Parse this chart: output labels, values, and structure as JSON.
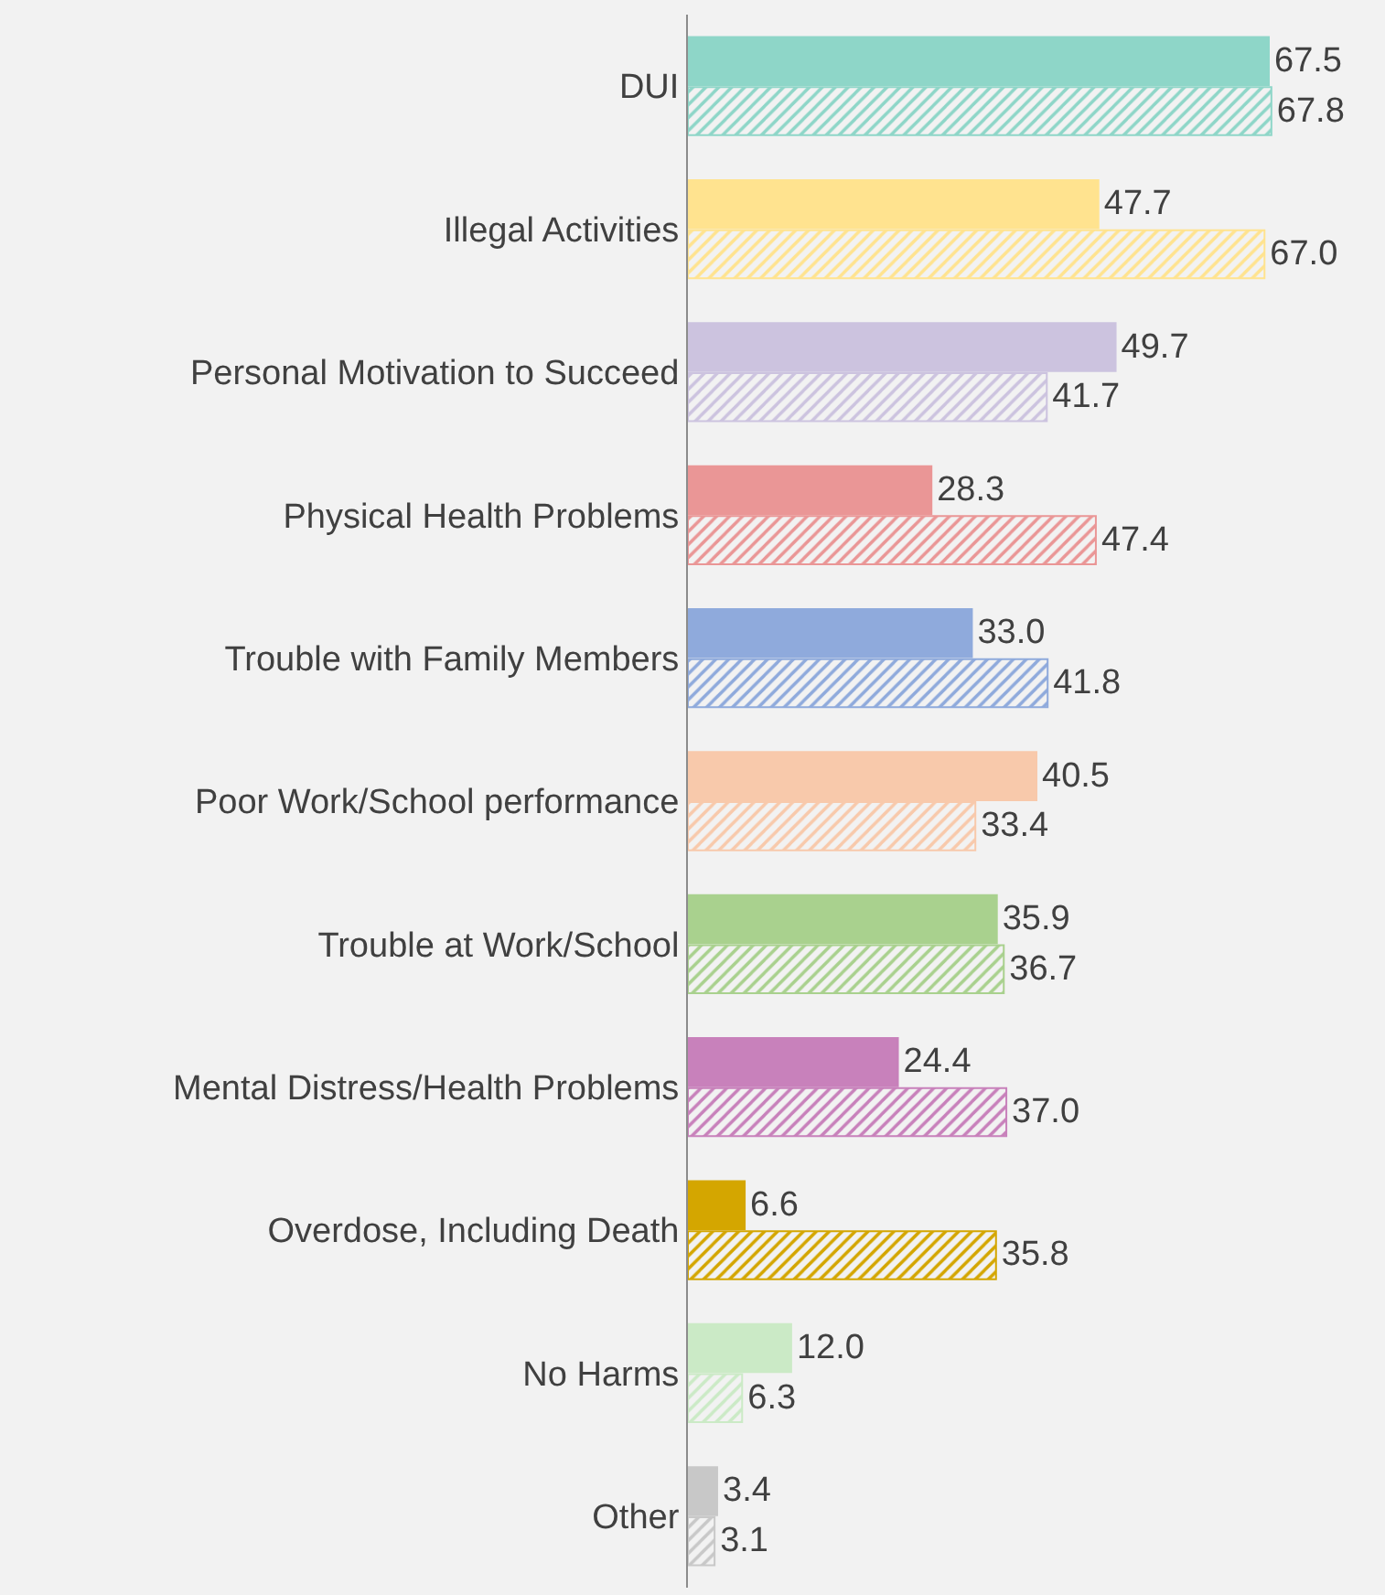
{
  "chart_data": {
    "type": "bar",
    "orientation": "horizontal",
    "categories": [
      "DUI",
      "Illegal Activities",
      "Personal Motivation to Succeed",
      "Physical Health Problems",
      "Trouble with Family Members",
      "Poor Work/School performance",
      "Trouble at Work/School",
      "Mental Distress/Health Problems",
      "Overdose, Including Death",
      "No Harms",
      "Other"
    ],
    "series": [
      {
        "values": [
          67.5,
          47.7,
          49.7,
          28.3,
          33.0,
          40.5,
          35.9,
          24.4,
          6.6,
          12.0,
          3.4
        ],
        "value_labels": [
          "67.5",
          "47.7",
          "49.7",
          "28.3",
          "33.0",
          "40.5",
          "35.9",
          "24.4",
          "6.6",
          "12.0",
          "3.4"
        ],
        "colors": [
          "#8ed6c8",
          "#ffe38f",
          "#ccc3df",
          "#ea9696",
          "#8faadc",
          "#f8c9ab",
          "#a9d18e",
          "#c881bb",
          "#d4a600",
          "#cbeac6",
          "#c8c8c8"
        ]
      },
      {
        "values": [
          67.8,
          67.0,
          41.7,
          47.4,
          41.8,
          33.4,
          36.7,
          37.0,
          35.8,
          6.3,
          3.1
        ],
        "value_labels": [
          "67.8",
          "67.0",
          "41.7",
          "47.4",
          "41.8",
          "33.4",
          "36.7",
          "37.0",
          "35.8",
          "6.3",
          "3.1"
        ],
        "colors": [
          "#8ed6c8",
          "#ffe38f",
          "#ccc3df",
          "#ea9696",
          "#8faadc",
          "#f8c9ab",
          "#a9d18e",
          "#c881bb",
          "#d4a600",
          "#cbeac6",
          "#c8c8c8"
        ]
      }
    ],
    "xlim": [
      0,
      81
    ],
    "legend": false,
    "tick_labels": "y"
  }
}
